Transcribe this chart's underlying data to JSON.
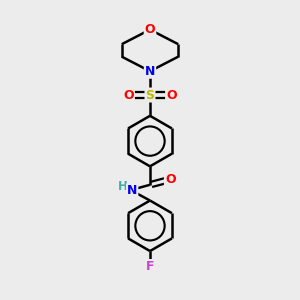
{
  "bg_color": "#ececec",
  "atom_colors": {
    "C": "#000000",
    "N": "#0000ee",
    "O": "#ff0000",
    "S": "#bbbb00",
    "F": "#cc44cc",
    "H": "#44aaaa"
  },
  "bond_color": "#000000",
  "bond_width": 1.8,
  "fig_width": 3.0,
  "fig_height": 3.0,
  "dpi": 100,
  "xlim": [
    0,
    10
  ],
  "ylim": [
    0,
    10
  ]
}
